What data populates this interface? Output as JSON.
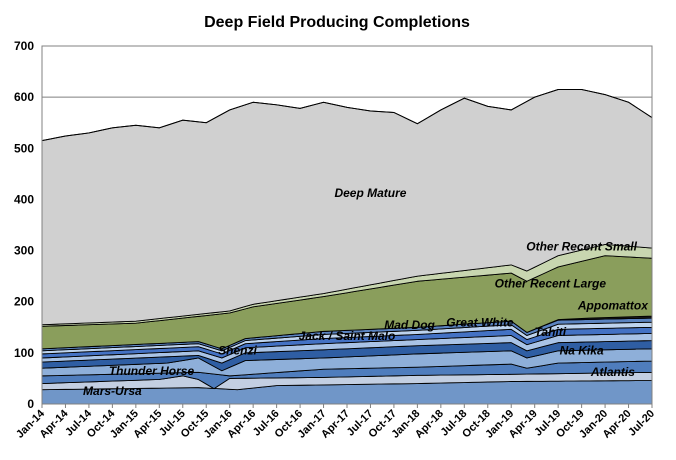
{
  "chart_data": {
    "type": "area",
    "stacked": true,
    "title": "Deep Field Producing Completions",
    "xlabel": "",
    "ylabel": "",
    "ylim": [
      0,
      700
    ],
    "yticks": [
      0,
      100,
      200,
      300,
      400,
      500,
      600,
      700
    ],
    "x_range": [
      "Jan-14",
      "Jul-20"
    ],
    "x_tick_labels": [
      "Jan-14",
      "Apr-14",
      "Jul-14",
      "Oct-14",
      "Jan-15",
      "Apr-15",
      "Jul-15",
      "Oct-15",
      "Jan-16",
      "Apr-16",
      "Jul-16",
      "Oct-16",
      "Jan-17",
      "Apr-17",
      "Jul-17",
      "Oct-17",
      "Jan-18",
      "Apr-18",
      "Jul-18",
      "Oct-18",
      "Jan-19",
      "Apr-19",
      "Jul-19",
      "Oct-19",
      "Jan-20",
      "Apr-20",
      "Jul-20"
    ],
    "grid": "horizontal",
    "legend": "inline labels",
    "total_outline": [
      {
        "month": "Jan-14",
        "value": 515
      },
      {
        "month": "Apr-14",
        "value": 524
      },
      {
        "month": "Jul-14",
        "value": 530
      },
      {
        "month": "Oct-14",
        "value": 540
      },
      {
        "month": "Jan-15",
        "value": 545
      },
      {
        "month": "Apr-15",
        "value": 540
      },
      {
        "month": "Jul-15",
        "value": 555
      },
      {
        "month": "Oct-15",
        "value": 550
      },
      {
        "month": "Jan-16",
        "value": 575
      },
      {
        "month": "Apr-16",
        "value": 590
      },
      {
        "month": "Jul-16",
        "value": 585
      },
      {
        "month": "Oct-16",
        "value": 578
      },
      {
        "month": "Jan-17",
        "value": 590
      },
      {
        "month": "Apr-17",
        "value": 580
      },
      {
        "month": "Jul-17",
        "value": 573
      },
      {
        "month": "Oct-17",
        "value": 570
      },
      {
        "month": "Jan-18",
        "value": 548
      },
      {
        "month": "Apr-18",
        "value": 575
      },
      {
        "month": "Jul-18",
        "value": 598
      },
      {
        "month": "Oct-18",
        "value": 582
      },
      {
        "month": "Jan-19",
        "value": 575
      },
      {
        "month": "Apr-19",
        "value": 600
      },
      {
        "month": "Jul-19",
        "value": 615
      },
      {
        "month": "Oct-19",
        "value": 615
      },
      {
        "month": "Jan-20",
        "value": 605
      },
      {
        "month": "Apr-20",
        "value": 590
      },
      {
        "month": "Jul-20",
        "value": 560
      }
    ],
    "series_bottom_to_top": [
      {
        "name": "Mars-Ursa",
        "color": "#7096c8"
      },
      {
        "name": "Thunder Horse",
        "color": "#c3cfe2"
      },
      {
        "name": "Atlantis",
        "color": "#4f7dbd"
      },
      {
        "name": "Shenzi",
        "color": "#8eafd9"
      },
      {
        "name": "Na Kika",
        "color": "#2f5ea3"
      },
      {
        "name": "Jack / Saint Malo",
        "color": "#a9c3e6"
      },
      {
        "name": "Tahiti",
        "color": "#4472c4"
      },
      {
        "name": "Mad Dog",
        "color": "#bdd3ee"
      },
      {
        "name": "Great White",
        "color": "#5a83c0"
      },
      {
        "name": "Appomattox",
        "color": "#1b1b1b"
      },
      {
        "name": "Other Recent Large",
        "color": "#8a9e5c"
      },
      {
        "name": "Other Recent Small",
        "color": "#c8d6b0"
      },
      {
        "name": "Deep Mature",
        "color": "#d0d0d0"
      }
    ],
    "series_labels": [
      {
        "name": "Mars-Ursa",
        "text": "Mars-Ursa",
        "anchor_month": "Oct-14",
        "anchor_value": 18
      },
      {
        "name": "Thunder Horse",
        "text": "Thunder Horse",
        "anchor_month": "Mar-15",
        "anchor_value": 57
      },
      {
        "name": "Atlantis",
        "text": "Atlantis",
        "anchor_month": "Feb-20",
        "anchor_value": 55
      },
      {
        "name": "Shenzi",
        "text": "Shenzi",
        "anchor_month": "Feb-16",
        "anchor_value": 97
      },
      {
        "name": "Na Kika",
        "text": "Na Kika",
        "anchor_month": "Oct-19",
        "anchor_value": 97
      },
      {
        "name": "Jack / Saint Malo",
        "text": "Jack / Saint Malo",
        "anchor_month": "Apr-17",
        "anchor_value": 125
      },
      {
        "name": "Tahiti",
        "text": "Tahiti",
        "anchor_month": "Jun-19",
        "anchor_value": 133
      },
      {
        "name": "Mad Dog",
        "text": "Mad Dog",
        "anchor_month": "Dec-17",
        "anchor_value": 147
      },
      {
        "name": "Great White",
        "text": "Great White",
        "anchor_month": "Sep-18",
        "anchor_value": 152
      },
      {
        "name": "Appomattox",
        "text": "Appomattox",
        "anchor_month": "Feb-20",
        "anchor_value": 185
      },
      {
        "name": "Other Recent Large",
        "text": "Other Recent Large",
        "anchor_month": "Jun-19",
        "anchor_value": 228
      },
      {
        "name": "Other Recent Small",
        "text": "Other Recent Small",
        "anchor_month": "Oct-19",
        "anchor_value": 300
      },
      {
        "name": "Deep Mature",
        "text": "Deep Mature",
        "anchor_month": "Jul-17",
        "anchor_value": 405
      }
    ]
  }
}
